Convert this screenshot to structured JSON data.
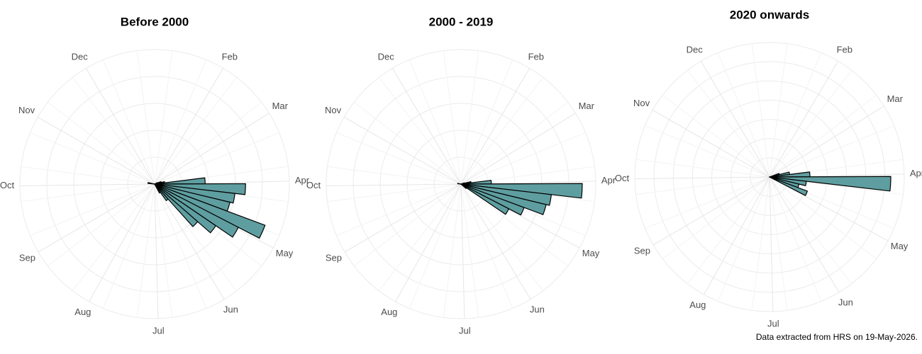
{
  "chart_data": [
    {
      "type": "polar-histogram",
      "title": "Before 2000",
      "color": "#5f9ea0",
      "xlim": [
        0,
        365
      ],
      "ylim": [
        0,
        40
      ],
      "xticks": [
        {
          "value": 31,
          "label": "Feb"
        },
        {
          "value": 59,
          "label": "Mar"
        },
        {
          "value": 90,
          "label": "Apr"
        },
        {
          "value": 120,
          "label": "May"
        },
        {
          "value": 151,
          "label": "Jun"
        },
        {
          "value": 181,
          "label": "Jul"
        },
        {
          "value": 212,
          "label": "Aug"
        },
        {
          "value": 243,
          "label": "Sep"
        },
        {
          "value": 273,
          "label": "Oct"
        },
        {
          "value": 304,
          "label": "Nov"
        },
        {
          "value": 334,
          "label": "Dec"
        }
      ],
      "bins": [
        0,
        7,
        14,
        21,
        28,
        35,
        42,
        49,
        56,
        63,
        70,
        77,
        84,
        91,
        98,
        105,
        112,
        119,
        126,
        133,
        140,
        147,
        154,
        161,
        168,
        175,
        182,
        189,
        196,
        203,
        210,
        217,
        224,
        231,
        238,
        245,
        252,
        259,
        266,
        273,
        280,
        287,
        294,
        301,
        308,
        315,
        322,
        329,
        336,
        343,
        350,
        357,
        364
      ],
      "values": [
        0,
        0,
        0,
        0,
        0,
        0,
        0,
        0,
        0,
        1,
        2,
        3,
        15,
        27,
        24,
        23,
        35,
        28,
        22,
        17,
        6,
        3,
        0,
        0,
        0,
        0,
        0,
        0,
        0,
        0,
        0,
        0,
        0,
        0,
        0,
        0,
        0,
        0,
        0,
        0,
        2,
        0,
        0,
        0,
        0,
        0,
        0,
        0,
        0,
        0,
        0,
        0
      ]
    },
    {
      "type": "polar-histogram",
      "title": "2000 - 2019",
      "color": "#5f9ea0",
      "xlim": [
        0,
        365
      ],
      "ylim": [
        0,
        40
      ],
      "xticks": [
        {
          "value": 31,
          "label": "Feb"
        },
        {
          "value": 59,
          "label": "Mar"
        },
        {
          "value": 90,
          "label": "Apr"
        },
        {
          "value": 120,
          "label": "May"
        },
        {
          "value": 151,
          "label": "Jun"
        },
        {
          "value": 181,
          "label": "Jul"
        },
        {
          "value": 212,
          "label": "Aug"
        },
        {
          "value": 243,
          "label": "Sep"
        },
        {
          "value": 273,
          "label": "Oct"
        },
        {
          "value": 304,
          "label": "Nov"
        },
        {
          "value": 334,
          "label": "Dec"
        }
      ],
      "bins": [
        0,
        7,
        14,
        21,
        28,
        35,
        42,
        49,
        56,
        63,
        70,
        77,
        84,
        91,
        98,
        105,
        112,
        119,
        126,
        133,
        140,
        147,
        154,
        161,
        168,
        175,
        182,
        189,
        196,
        203,
        210,
        217,
        224,
        231,
        238,
        245,
        252,
        259,
        266,
        273,
        280,
        287,
        294,
        301,
        308,
        315,
        322,
        329,
        336,
        343,
        350,
        357,
        364
      ],
      "values": [
        0,
        0,
        0,
        0,
        0,
        0,
        0,
        0,
        0,
        0,
        1,
        3,
        9,
        36,
        27,
        26,
        20,
        16,
        2,
        0,
        0,
        0,
        0,
        0,
        0,
        0,
        0,
        0,
        0,
        0,
        0,
        0,
        0,
        0,
        0,
        0,
        0,
        0,
        0,
        0,
        1,
        0,
        0,
        0,
        0,
        0,
        0,
        0,
        0,
        0,
        0,
        0
      ]
    },
    {
      "type": "polar-histogram",
      "title": "2020 onwards",
      "color": "#5f9ea0",
      "xlim": [
        0,
        365
      ],
      "ylim": [
        0,
        40
      ],
      "xticks": [
        {
          "value": 31,
          "label": "Feb"
        },
        {
          "value": 59,
          "label": "Mar"
        },
        {
          "value": 90,
          "label": "Apr"
        },
        {
          "value": 120,
          "label": "May"
        },
        {
          "value": 151,
          "label": "Jun"
        },
        {
          "value": 181,
          "label": "Jul"
        },
        {
          "value": 212,
          "label": "Aug"
        },
        {
          "value": 243,
          "label": "Sep"
        },
        {
          "value": 273,
          "label": "Oct"
        },
        {
          "value": 304,
          "label": "Nov"
        },
        {
          "value": 334,
          "label": "Dec"
        }
      ],
      "bins": [
        0,
        7,
        14,
        21,
        28,
        35,
        42,
        49,
        56,
        63,
        70,
        77,
        84,
        91,
        98,
        105,
        112,
        119,
        126,
        133,
        140,
        147,
        154,
        161,
        168,
        175,
        182,
        189,
        196,
        203,
        210,
        217,
        224,
        231,
        238,
        245,
        252,
        259,
        266,
        273,
        280,
        287,
        294,
        301,
        308,
        315,
        322,
        329,
        336,
        343,
        350,
        357,
        364
      ],
      "values": [
        0,
        0,
        0,
        0,
        0,
        0,
        0,
        0,
        0,
        0,
        3,
        6,
        12,
        36,
        11,
        9,
        12,
        0,
        0,
        0,
        0,
        0,
        0,
        0,
        0,
        0,
        0,
        0,
        0,
        0,
        0,
        0,
        0,
        0,
        0,
        0,
        0,
        0,
        0,
        0,
        0,
        0,
        0,
        0,
        0,
        0,
        0,
        0,
        0,
        0,
        0,
        0
      ]
    }
  ],
  "caption": "Data extracted from HRS on 19-May-2026."
}
